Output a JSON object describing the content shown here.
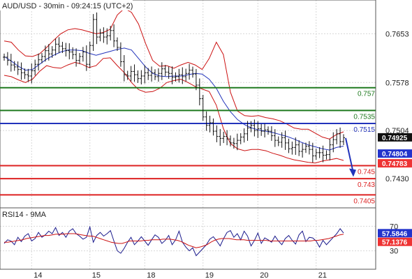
{
  "chart_data": [
    {
      "type": "candlestick",
      "title": "AUD/USD - 30min - 09:24:15 (UTC+2)",
      "ylim": [
        0.7385,
        0.7705
      ],
      "y_ticks": [
        "0.7653",
        "0.7578",
        "0.7504",
        "0.7430",
        "70",
        "30"
      ],
      "x_ticks": [
        "14",
        "15",
        "18",
        "19",
        "20",
        "21"
      ],
      "grid": true,
      "levels": [
        {
          "value": 0.757,
          "label": "0.757",
          "color": "#1f7a1f"
        },
        {
          "value": 0.7535,
          "label": "0.7535",
          "color": "#1f7a1f"
        },
        {
          "value": 0.7515,
          "label": "0.7515",
          "color": "#2233bb"
        },
        {
          "value": 0.745,
          "label": "0.745",
          "color": "#dd2222"
        },
        {
          "value": 0.743,
          "label": "0.743",
          "color": "#dd2222"
        },
        {
          "value": 0.7405,
          "label": "0.7405",
          "color": "#dd2222"
        }
      ],
      "price_tags": [
        {
          "value": 0.74925,
          "label": "0.74925",
          "bg": "#111111"
        },
        {
          "value": 0.74804,
          "label": "0.74804",
          "bg": "#2233cc"
        },
        {
          "value": 0.74783,
          "label": "0.74783",
          "bg": "#ee3333"
        }
      ],
      "closes": [
        0.7617,
        0.7612,
        0.7605,
        0.7602,
        0.7598,
        0.7593,
        0.759,
        0.7588,
        0.7596,
        0.7606,
        0.7613,
        0.7618,
        0.7627,
        0.7622,
        0.7628,
        0.7637,
        0.7634,
        0.763,
        0.7627,
        0.7625,
        0.7621,
        0.7612,
        0.7618,
        0.7625,
        0.7606,
        0.7635,
        0.7675,
        0.7648,
        0.7654,
        0.7648,
        0.765,
        0.7658,
        0.7642,
        0.7632,
        0.761,
        0.759,
        0.7588,
        0.7595,
        0.759,
        0.7584,
        0.7588,
        0.7593,
        0.7589,
        0.7593,
        0.7587,
        0.7592,
        0.7599,
        0.7594,
        0.7592,
        0.7586,
        0.7587,
        0.759,
        0.7587,
        0.7592,
        0.7597,
        0.7591,
        0.7574,
        0.7553,
        0.7525,
        0.7512,
        0.7516,
        0.7503,
        0.7495,
        0.7492,
        0.7495,
        0.7491,
        0.7485,
        0.7484,
        0.7489,
        0.7494,
        0.7499,
        0.7508,
        0.7512,
        0.7504,
        0.7507,
        0.7503,
        0.7505,
        0.7503,
        0.7496,
        0.7489,
        0.7486,
        0.7493,
        0.7485,
        0.7476,
        0.7478,
        0.7482,
        0.7472,
        0.7475,
        0.748,
        0.7475,
        0.7465,
        0.747,
        0.747,
        0.7466,
        0.7467,
        0.7482,
        0.749,
        0.7499,
        0.7487,
        0.7493
      ],
      "upper_band_values": [
        0.7642,
        0.764,
        0.7628,
        0.7619,
        0.7618,
        0.7622,
        0.7632,
        0.7643,
        0.7653,
        0.7659,
        0.7661,
        0.7659,
        0.7656,
        0.7653,
        0.7655,
        0.766,
        0.7682,
        0.7692,
        0.7686,
        0.7668,
        0.7638,
        0.7612,
        0.7603,
        0.7604,
        0.76,
        0.7605,
        0.7609,
        0.7605,
        0.7598,
        0.7615,
        0.764,
        0.7621,
        0.7563,
        0.7534,
        0.7527,
        0.7526,
        0.7527,
        0.7524,
        0.7522,
        0.7519,
        0.7514,
        0.7508,
        0.7506,
        0.7506,
        0.75,
        0.7494,
        0.7491,
        0.7498,
        0.7502
      ],
      "lower_band_values": [
        0.7589,
        0.7587,
        0.7582,
        0.7578,
        0.7583,
        0.7595,
        0.7604,
        0.7601,
        0.76,
        0.7605,
        0.7609,
        0.7606,
        0.7601,
        0.7604,
        0.7615,
        0.7616,
        0.7604,
        0.7593,
        0.7578,
        0.7567,
        0.7563,
        0.7564,
        0.7569,
        0.7578,
        0.7581,
        0.7583,
        0.7578,
        0.7572,
        0.7568,
        0.7564,
        0.7543,
        0.7507,
        0.7484,
        0.7476,
        0.7473,
        0.7475,
        0.7475,
        0.7473,
        0.7469,
        0.7466,
        0.7462,
        0.7459,
        0.7457,
        0.7455,
        0.7454,
        0.7457,
        0.7459,
        0.7461,
        0.7458
      ],
      "ma_values": [
        0.7618,
        0.7611,
        0.7603,
        0.7597,
        0.7598,
        0.7606,
        0.7614,
        0.762,
        0.7625,
        0.7628,
        0.7628,
        0.7627,
        0.7623,
        0.762,
        0.7623,
        0.7626,
        0.7629,
        0.7631,
        0.7628,
        0.7615,
        0.7602,
        0.7592,
        0.7588,
        0.7587,
        0.7588,
        0.7588,
        0.759,
        0.7592,
        0.7591,
        0.7583,
        0.7569,
        0.7549,
        0.7533,
        0.7521,
        0.7513,
        0.7508,
        0.7505,
        0.7503,
        0.7501,
        0.7498,
        0.7495,
        0.7491,
        0.7486,
        0.7482,
        0.7479,
        0.7476,
        0.7474,
        0.7478,
        0.748
      ]
    },
    {
      "type": "line",
      "title": "RSI14 - 9MA",
      "ylim": [
        0,
        100
      ],
      "y_ticks": [
        "70",
        "30"
      ],
      "tags": [
        {
          "value": 57.5846,
          "label": "57.5846",
          "bg": "#2233cc"
        },
        {
          "value": 57.1376,
          "label": "57.1376",
          "bg": "#ee3333"
        }
      ],
      "series": [
        {
          "values": [
            42,
            48,
            46,
            40,
            52,
            45,
            54,
            58,
            46,
            50,
            60,
            52,
            56,
            62,
            58,
            68,
            55,
            60,
            52,
            62,
            66,
            58,
            54,
            49,
            52,
            69,
            44,
            55,
            60,
            54,
            58,
            63,
            46,
            30,
            26,
            34,
            44,
            52,
            40,
            46,
            53,
            46,
            39,
            48,
            56,
            52,
            42,
            47,
            55,
            40,
            48,
            62,
            44,
            36,
            30,
            35,
            22,
            28,
            34,
            40,
            49,
            53,
            46,
            38,
            50,
            60,
            63,
            52,
            58,
            48,
            62,
            54,
            38,
            47,
            59,
            42,
            51,
            48,
            44,
            54,
            46,
            40,
            50,
            55,
            47,
            41,
            56,
            62,
            45,
            52,
            51,
            46,
            36,
            47,
            40,
            46,
            52,
            58,
            66,
            59
          ]
        },
        {
          "values": [
            44,
            44,
            45,
            46,
            47,
            48,
            50,
            51,
            52,
            53,
            54,
            55,
            55,
            56,
            57,
            57,
            57,
            58,
            58,
            58,
            57,
            56,
            55,
            54,
            54,
            52,
            50,
            48,
            46,
            44,
            43,
            42,
            42,
            44,
            46,
            46,
            46,
            46,
            47,
            47,
            48,
            48,
            48,
            49,
            49,
            49,
            48,
            47,
            45,
            42,
            39,
            37,
            35,
            36,
            38,
            40,
            44,
            47,
            49,
            50,
            50,
            50,
            49,
            48,
            48,
            48,
            47,
            47,
            47,
            47,
            47,
            47,
            46,
            46,
            46,
            46,
            46,
            46,
            46,
            46,
            46,
            46,
            46,
            46,
            47,
            47,
            48,
            49,
            50,
            52,
            54,
            56,
            57
          ]
        }
      ]
    }
  ]
}
